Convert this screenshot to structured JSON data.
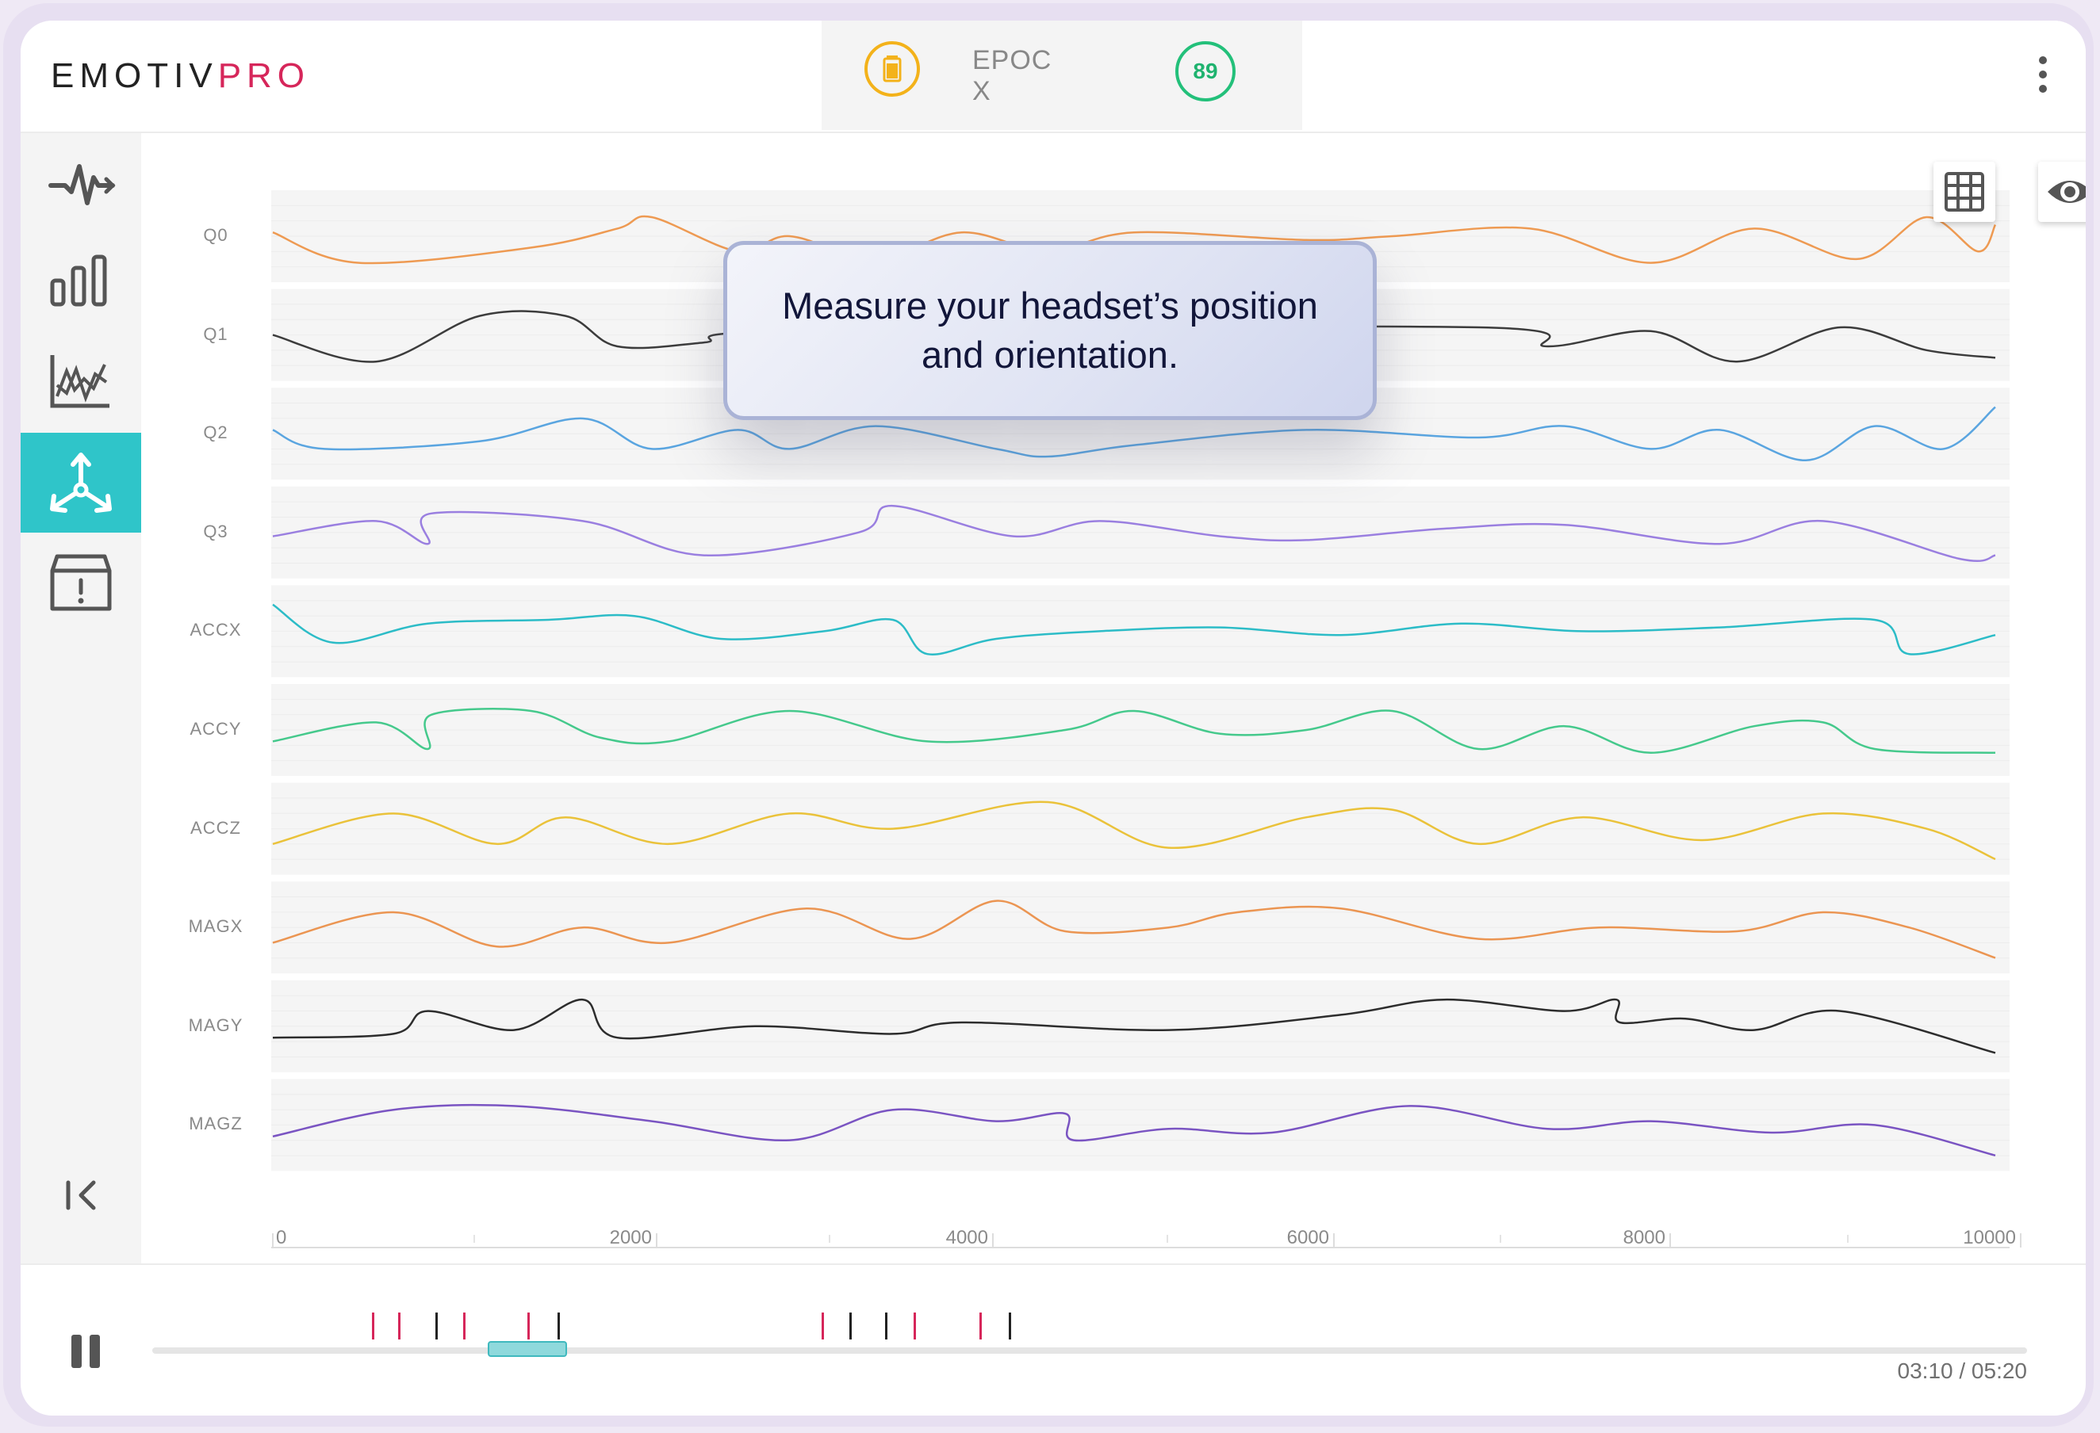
{
  "app": {
    "logo_part1": "EMOTIV",
    "logo_part2": "PRO"
  },
  "header": {
    "device_name": "EPOC X",
    "quality_score": "89",
    "battery_icon": "battery-icon",
    "menu_icon": "more-vertical-icon"
  },
  "sidebar": {
    "items": [
      {
        "icon": "waveform-icon",
        "active": false
      },
      {
        "icon": "bar-chart-icon",
        "active": false
      },
      {
        "icon": "line-chart-icon",
        "active": false
      },
      {
        "icon": "motion-axes-icon",
        "active": true
      },
      {
        "icon": "alert-box-icon",
        "active": false
      }
    ],
    "collapse_icon": "collapse-left-icon"
  },
  "tooltip": {
    "text": "Measure your headset’s position and orientation."
  },
  "toolbar": {
    "grid_icon": "grid-icon",
    "eye_icon": "eye-icon"
  },
  "chart_data": {
    "type": "line",
    "xlim": [
      0,
      10000
    ],
    "x_ticks": [
      "0",
      "2000",
      "4000",
      "6000",
      "8000",
      "10000"
    ],
    "series": [
      {
        "name": "Q0",
        "color": "#ee9a52",
        "points": [
          [
            0,
            0.55
          ],
          [
            500,
            0.15
          ],
          [
            1500,
            0.35
          ],
          [
            2000,
            0.6
          ],
          [
            2200,
            0.75
          ],
          [
            2700,
            0.3
          ],
          [
            3000,
            0.5
          ],
          [
            3500,
            0.2
          ],
          [
            4000,
            0.55
          ],
          [
            4500,
            0.3
          ],
          [
            5000,
            0.55
          ],
          [
            6000,
            0.45
          ],
          [
            6500,
            0.5
          ],
          [
            7300,
            0.6
          ],
          [
            8000,
            0.15
          ],
          [
            8600,
            0.6
          ],
          [
            9200,
            0.2
          ],
          [
            9600,
            0.75
          ],
          [
            9900,
            0.3
          ],
          [
            10000,
            0.65
          ]
        ]
      },
      {
        "name": "Q1",
        "color": "#3c3c3c",
        "points": [
          [
            0,
            0.5
          ],
          [
            600,
            0.15
          ],
          [
            1200,
            0.75
          ],
          [
            1700,
            0.75
          ],
          [
            2000,
            0.35
          ],
          [
            2500,
            0.4
          ],
          [
            3000,
            0.55
          ],
          [
            7000,
            0.6
          ],
          [
            7400,
            0.35
          ],
          [
            8000,
            0.55
          ],
          [
            8500,
            0.15
          ],
          [
            9100,
            0.6
          ],
          [
            9600,
            0.3
          ],
          [
            10000,
            0.2
          ]
        ]
      },
      {
        "name": "Q2",
        "color": "#5aa5e0",
        "points": [
          [
            0,
            0.55
          ],
          [
            300,
            0.3
          ],
          [
            1200,
            0.4
          ],
          [
            1800,
            0.7
          ],
          [
            2200,
            0.3
          ],
          [
            2700,
            0.55
          ],
          [
            3000,
            0.3
          ],
          [
            3500,
            0.6
          ],
          [
            4200,
            0.3
          ],
          [
            4500,
            0.2
          ],
          [
            5000,
            0.35
          ],
          [
            6000,
            0.55
          ],
          [
            7000,
            0.45
          ],
          [
            7500,
            0.6
          ],
          [
            8000,
            0.3
          ],
          [
            8400,
            0.55
          ],
          [
            8900,
            0.15
          ],
          [
            9300,
            0.6
          ],
          [
            9700,
            0.3
          ],
          [
            10000,
            0.85
          ]
        ]
      },
      {
        "name": "Q3",
        "color": "#9a7fe0",
        "points": [
          [
            0,
            0.45
          ],
          [
            600,
            0.65
          ],
          [
            900,
            0.35
          ],
          [
            920,
            0.75
          ],
          [
            1800,
            0.65
          ],
          [
            2500,
            0.2
          ],
          [
            3400,
            0.5
          ],
          [
            3600,
            0.85
          ],
          [
            4300,
            0.45
          ],
          [
            4800,
            0.65
          ],
          [
            5500,
            0.45
          ],
          [
            6000,
            0.4
          ],
          [
            6800,
            0.55
          ],
          [
            7500,
            0.6
          ],
          [
            8400,
            0.35
          ],
          [
            9000,
            0.65
          ],
          [
            9800,
            0.15
          ],
          [
            10000,
            0.2
          ]
        ]
      },
      {
        "name": "ACCX",
        "color": "#2cbcc7",
        "points": [
          [
            0,
            0.85
          ],
          [
            350,
            0.35
          ],
          [
            900,
            0.6
          ],
          [
            1600,
            0.65
          ],
          [
            2100,
            0.7
          ],
          [
            2600,
            0.4
          ],
          [
            3200,
            0.5
          ],
          [
            3600,
            0.65
          ],
          [
            3800,
            0.2
          ],
          [
            4200,
            0.4
          ],
          [
            4800,
            0.5
          ],
          [
            5500,
            0.55
          ],
          [
            6200,
            0.45
          ],
          [
            6900,
            0.6
          ],
          [
            7600,
            0.5
          ],
          [
            8400,
            0.55
          ],
          [
            9300,
            0.65
          ],
          [
            9500,
            0.2
          ],
          [
            10000,
            0.45
          ]
        ]
      },
      {
        "name": "ACCY",
        "color": "#45c98c",
        "points": [
          [
            0,
            0.35
          ],
          [
            600,
            0.6
          ],
          [
            900,
            0.25
          ],
          [
            920,
            0.7
          ],
          [
            1500,
            0.75
          ],
          [
            1900,
            0.4
          ],
          [
            2300,
            0.35
          ],
          [
            3000,
            0.75
          ],
          [
            3800,
            0.35
          ],
          [
            4600,
            0.5
          ],
          [
            5000,
            0.75
          ],
          [
            5500,
            0.45
          ],
          [
            6000,
            0.5
          ],
          [
            6500,
            0.75
          ],
          [
            7000,
            0.25
          ],
          [
            7500,
            0.55
          ],
          [
            8000,
            0.2
          ],
          [
            8600,
            0.55
          ],
          [
            9000,
            0.6
          ],
          [
            9300,
            0.25
          ],
          [
            10000,
            0.2
          ]
        ]
      },
      {
        "name": "ACCZ",
        "color": "#eac23a",
        "points": [
          [
            0,
            0.3
          ],
          [
            700,
            0.7
          ],
          [
            1300,
            0.3
          ],
          [
            1700,
            0.65
          ],
          [
            2300,
            0.3
          ],
          [
            3000,
            0.7
          ],
          [
            3600,
            0.5
          ],
          [
            4500,
            0.85
          ],
          [
            5200,
            0.25
          ],
          [
            6000,
            0.65
          ],
          [
            6500,
            0.75
          ],
          [
            7000,
            0.3
          ],
          [
            7600,
            0.65
          ],
          [
            8300,
            0.35
          ],
          [
            9000,
            0.7
          ],
          [
            9600,
            0.5
          ],
          [
            10000,
            0.1
          ]
        ]
      },
      {
        "name": "MAGX",
        "color": "#eb9552",
        "points": [
          [
            0,
            0.3
          ],
          [
            700,
            0.7
          ],
          [
            1300,
            0.25
          ],
          [
            1800,
            0.5
          ],
          [
            2300,
            0.3
          ],
          [
            3100,
            0.75
          ],
          [
            3700,
            0.35
          ],
          [
            4200,
            0.85
          ],
          [
            4600,
            0.45
          ],
          [
            5200,
            0.5
          ],
          [
            5600,
            0.7
          ],
          [
            6200,
            0.75
          ],
          [
            7000,
            0.35
          ],
          [
            7700,
            0.5
          ],
          [
            8500,
            0.45
          ],
          [
            9000,
            0.7
          ],
          [
            9500,
            0.5
          ],
          [
            10000,
            0.1
          ]
        ]
      },
      {
        "name": "MAGY",
        "color": "#2d2d2d",
        "points": [
          [
            0,
            0.35
          ],
          [
            700,
            0.4
          ],
          [
            900,
            0.7
          ],
          [
            1400,
            0.45
          ],
          [
            1800,
            0.85
          ],
          [
            2000,
            0.35
          ],
          [
            2800,
            0.5
          ],
          [
            3600,
            0.4
          ],
          [
            4000,
            0.55
          ],
          [
            5200,
            0.45
          ],
          [
            6200,
            0.65
          ],
          [
            6800,
            0.85
          ],
          [
            7500,
            0.7
          ],
          [
            7800,
            0.85
          ],
          [
            7820,
            0.55
          ],
          [
            8200,
            0.6
          ],
          [
            8600,
            0.45
          ],
          [
            9100,
            0.7
          ],
          [
            10000,
            0.15
          ]
        ]
      },
      {
        "name": "MAGZ",
        "color": "#7a54c2",
        "points": [
          [
            0,
            0.35
          ],
          [
            700,
            0.7
          ],
          [
            1400,
            0.75
          ],
          [
            2200,
            0.55
          ],
          [
            3000,
            0.3
          ],
          [
            3600,
            0.7
          ],
          [
            4200,
            0.55
          ],
          [
            4600,
            0.65
          ],
          [
            4650,
            0.3
          ],
          [
            5200,
            0.45
          ],
          [
            5800,
            0.4
          ],
          [
            6600,
            0.75
          ],
          [
            7400,
            0.45
          ],
          [
            8000,
            0.55
          ],
          [
            8700,
            0.4
          ],
          [
            9300,
            0.5
          ],
          [
            10000,
            0.1
          ]
        ]
      }
    ]
  },
  "timeline": {
    "time_readout": "03:10 / 05:20",
    "pause_icon": "pause-icon",
    "position_fraction": 0.2,
    "markers": [
      {
        "pos": 0.117,
        "color": "#d6265a"
      },
      {
        "pos": 0.131,
        "color": "#d6265a"
      },
      {
        "pos": 0.151,
        "color": "#222222"
      },
      {
        "pos": 0.166,
        "color": "#d6265a"
      },
      {
        "pos": 0.2,
        "color": "#d6265a"
      },
      {
        "pos": 0.216,
        "color": "#222222"
      },
      {
        "pos": 0.357,
        "color": "#d6265a"
      },
      {
        "pos": 0.372,
        "color": "#222222"
      },
      {
        "pos": 0.391,
        "color": "#222222"
      },
      {
        "pos": 0.406,
        "color": "#d6265a"
      },
      {
        "pos": 0.441,
        "color": "#d6265a"
      },
      {
        "pos": 0.457,
        "color": "#222222"
      }
    ]
  }
}
